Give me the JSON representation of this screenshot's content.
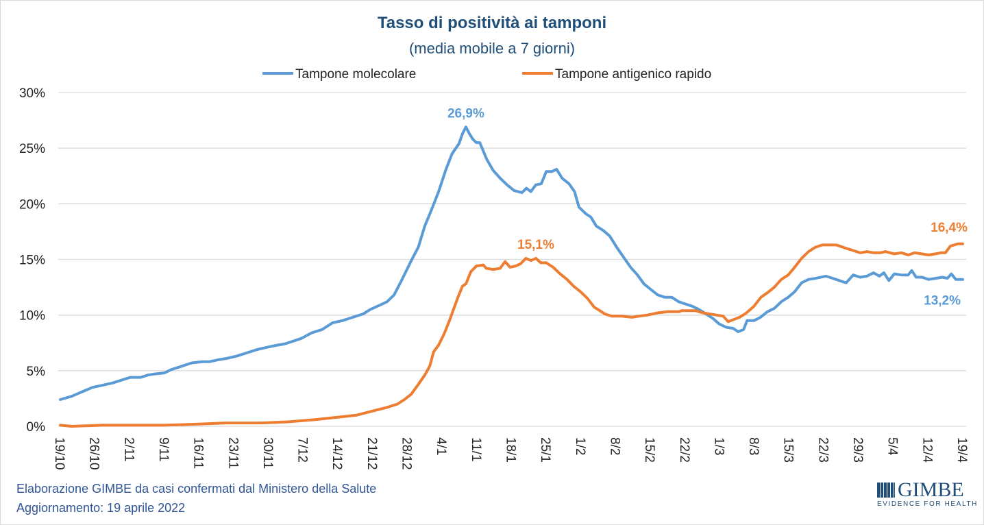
{
  "chart_data": {
    "type": "line",
    "title": "Tasso di positività ai tamponi",
    "subtitle": "(media mobile a 7 giorni)",
    "xlabel": "",
    "ylabel": "",
    "ylim": [
      0,
      30
    ],
    "y_ticks": [
      "0%",
      "5%",
      "10%",
      "15%",
      "20%",
      "25%",
      "30%"
    ],
    "y_tick_values": [
      0,
      5,
      10,
      15,
      20,
      25,
      30
    ],
    "x_unit": "days since 19/10/2021",
    "xlim": [
      0,
      182
    ],
    "x_ticks": [
      "19/10",
      "26/10",
      "2/11",
      "9/11",
      "16/11",
      "23/11",
      "30/11",
      "7/12",
      "14/12",
      "21/12",
      "28/12",
      "4/1",
      "11/1",
      "18/1",
      "25/1",
      "1/2",
      "8/2",
      "15/2",
      "22/2",
      "1/3",
      "8/3",
      "15/3",
      "22/3",
      "29/3",
      "5/4",
      "12/4",
      "19/4"
    ],
    "grid": true,
    "legend_position": "top",
    "series": [
      {
        "name": "Tampone molecolare",
        "color": "#5b9bd5",
        "annotations": [
          {
            "x": 81.8,
            "y": 26.9,
            "label": "26,9%",
            "pos": "above"
          },
          {
            "x": 182,
            "y": 13.2,
            "label": "13,2%",
            "pos": "below-left"
          }
        ],
        "points": [
          [
            0,
            2.4
          ],
          [
            2.3,
            2.7
          ],
          [
            4.4,
            3.1
          ],
          [
            6.5,
            3.5
          ],
          [
            8.6,
            3.7
          ],
          [
            10.6,
            3.9
          ],
          [
            12.7,
            4.2
          ],
          [
            14.1,
            4.4
          ],
          [
            16.2,
            4.4
          ],
          [
            17.6,
            4.6
          ],
          [
            18.9,
            4.7
          ],
          [
            21.0,
            4.8
          ],
          [
            22.4,
            5.1
          ],
          [
            24.5,
            5.4
          ],
          [
            26.5,
            5.7
          ],
          [
            28.6,
            5.8
          ],
          [
            30.0,
            5.8
          ],
          [
            32.1,
            6.0
          ],
          [
            33.5,
            6.1
          ],
          [
            35.5,
            6.3
          ],
          [
            37.6,
            6.6
          ],
          [
            39.7,
            6.9
          ],
          [
            41.7,
            7.1
          ],
          [
            43.8,
            7.3
          ],
          [
            45.2,
            7.4
          ],
          [
            46.6,
            7.6
          ],
          [
            48.6,
            7.9
          ],
          [
            50.7,
            8.4
          ],
          [
            52.8,
            8.7
          ],
          [
            54.9,
            9.3
          ],
          [
            56.9,
            9.5
          ],
          [
            59.0,
            9.8
          ],
          [
            61.1,
            10.1
          ],
          [
            62.5,
            10.5
          ],
          [
            64.5,
            10.9
          ],
          [
            65.9,
            11.2
          ],
          [
            67.3,
            11.8
          ],
          [
            68.7,
            13.0
          ],
          [
            70.8,
            14.9
          ],
          [
            72.2,
            16.1
          ],
          [
            73.5,
            18.0
          ],
          [
            74.9,
            19.5
          ],
          [
            76.3,
            21.1
          ],
          [
            77.7,
            23.0
          ],
          [
            79.0,
            24.5
          ],
          [
            80.4,
            25.4
          ],
          [
            81.1,
            26.3
          ],
          [
            81.8,
            26.9
          ],
          [
            82.5,
            26.3
          ],
          [
            83.2,
            25.8
          ],
          [
            83.9,
            25.5
          ],
          [
            84.6,
            25.5
          ],
          [
            86.0,
            24.0
          ],
          [
            87.3,
            23.0
          ],
          [
            88.7,
            22.3
          ],
          [
            90.1,
            21.7
          ],
          [
            91.5,
            21.2
          ],
          [
            93.1,
            21.0
          ],
          [
            94.0,
            21.4
          ],
          [
            94.9,
            21.1
          ],
          [
            95.9,
            21.7
          ],
          [
            97.0,
            21.8
          ],
          [
            98.0,
            22.9
          ],
          [
            99.1,
            22.9
          ],
          [
            100.1,
            23.1
          ],
          [
            101.2,
            22.3
          ],
          [
            102.6,
            21.8
          ],
          [
            103.7,
            21.1
          ],
          [
            104.6,
            19.7
          ],
          [
            106.0,
            19.1
          ],
          [
            107.0,
            18.8
          ],
          [
            108.1,
            18.0
          ],
          [
            109.5,
            17.6
          ],
          [
            110.8,
            17.1
          ],
          [
            112.2,
            16.1
          ],
          [
            113.6,
            15.2
          ],
          [
            115.0,
            14.3
          ],
          [
            116.4,
            13.6
          ],
          [
            117.7,
            12.8
          ],
          [
            119.1,
            12.3
          ],
          [
            120.5,
            11.8
          ],
          [
            121.9,
            11.6
          ],
          [
            123.3,
            11.6
          ],
          [
            124.7,
            11.2
          ],
          [
            126.0,
            11.0
          ],
          [
            127.4,
            10.8
          ],
          [
            128.8,
            10.5
          ],
          [
            130.2,
            10.1
          ],
          [
            131.6,
            9.7
          ],
          [
            132.9,
            9.2
          ],
          [
            134.3,
            8.9
          ],
          [
            135.7,
            8.8
          ],
          [
            136.7,
            8.5
          ],
          [
            137.8,
            8.7
          ],
          [
            138.5,
            9.5
          ],
          [
            139.9,
            9.5
          ],
          [
            141.2,
            9.8
          ],
          [
            142.6,
            10.3
          ],
          [
            144.0,
            10.6
          ],
          [
            145.4,
            11.2
          ],
          [
            146.8,
            11.6
          ],
          [
            148.1,
            12.1
          ],
          [
            149.5,
            12.9
          ],
          [
            150.9,
            13.2
          ],
          [
            152.3,
            13.3
          ],
          [
            154.4,
            13.5
          ],
          [
            155.8,
            13.3
          ],
          [
            157.1,
            13.1
          ],
          [
            158.5,
            12.9
          ],
          [
            159.9,
            13.6
          ],
          [
            161.3,
            13.4
          ],
          [
            162.7,
            13.5
          ],
          [
            164.0,
            13.8
          ],
          [
            165.2,
            13.5
          ],
          [
            166.1,
            13.8
          ],
          [
            167.1,
            13.1
          ],
          [
            168.2,
            13.7
          ],
          [
            169.6,
            13.6
          ],
          [
            171.0,
            13.6
          ],
          [
            171.7,
            14.0
          ],
          [
            172.6,
            13.4
          ],
          [
            173.8,
            13.4
          ],
          [
            175.1,
            13.2
          ],
          [
            176.5,
            13.3
          ],
          [
            177.9,
            13.4
          ],
          [
            178.9,
            13.3
          ],
          [
            179.7,
            13.7
          ],
          [
            180.6,
            13.2
          ],
          [
            182.0,
            13.2
          ]
        ]
      },
      {
        "name": "Tampone antigenico rapido",
        "color": "#ed7d31",
        "annotations": [
          {
            "x": 95.9,
            "y": 15.1,
            "label": "15,1%",
            "pos": "above"
          },
          {
            "x": 182,
            "y": 16.4,
            "label": "16,4%",
            "pos": "above-left"
          }
        ],
        "points": [
          [
            0,
            0.1
          ],
          [
            2.3,
            0
          ],
          [
            8.6,
            0.1
          ],
          [
            15.5,
            0.1
          ],
          [
            21.0,
            0.1
          ],
          [
            27.9,
            0.2
          ],
          [
            33.4,
            0.3
          ],
          [
            40.4,
            0.3
          ],
          [
            45.9,
            0.4
          ],
          [
            51.4,
            0.6
          ],
          [
            55.6,
            0.8
          ],
          [
            59.7,
            1.0
          ],
          [
            63.2,
            1.4
          ],
          [
            65.9,
            1.7
          ],
          [
            68.0,
            2.0
          ],
          [
            69.4,
            2.4
          ],
          [
            70.8,
            2.9
          ],
          [
            72.1,
            3.7
          ],
          [
            73.5,
            4.6
          ],
          [
            74.5,
            5.4
          ],
          [
            75.3,
            6.7
          ],
          [
            76.3,
            7.3
          ],
          [
            77.4,
            8.3
          ],
          [
            78.4,
            9.4
          ],
          [
            79.3,
            10.5
          ],
          [
            80.2,
            11.6
          ],
          [
            81.1,
            12.6
          ],
          [
            81.8,
            12.8
          ],
          [
            82.8,
            13.9
          ],
          [
            83.9,
            14.4
          ],
          [
            85.3,
            14.5
          ],
          [
            85.9,
            14.2
          ],
          [
            87.3,
            14.1
          ],
          [
            88.7,
            14.2
          ],
          [
            89.7,
            14.8
          ],
          [
            90.7,
            14.3
          ],
          [
            91.8,
            14.4
          ],
          [
            92.8,
            14.6
          ],
          [
            93.9,
            15.1
          ],
          [
            94.9,
            14.9
          ],
          [
            95.9,
            15.1
          ],
          [
            96.9,
            14.7
          ],
          [
            98.0,
            14.7
          ],
          [
            99.4,
            14.3
          ],
          [
            100.8,
            13.7
          ],
          [
            102.2,
            13.2
          ],
          [
            103.5,
            12.6
          ],
          [
            104.9,
            12.1
          ],
          [
            106.3,
            11.5
          ],
          [
            107.7,
            10.7
          ],
          [
            108.8,
            10.4
          ],
          [
            109.8,
            10.1
          ],
          [
            111.2,
            9.9
          ],
          [
            113.2,
            9.9
          ],
          [
            115.3,
            9.8
          ],
          [
            116.7,
            9.9
          ],
          [
            118.4,
            10.0
          ],
          [
            120.5,
            10.2
          ],
          [
            122.6,
            10.3
          ],
          [
            124.7,
            10.3
          ],
          [
            125.4,
            10.4
          ],
          [
            128.1,
            10.4
          ],
          [
            129.5,
            10.2
          ],
          [
            130.9,
            10.1
          ],
          [
            132.3,
            10.0
          ],
          [
            133.7,
            9.9
          ],
          [
            134.7,
            9.4
          ],
          [
            135.8,
            9.6
          ],
          [
            137.0,
            9.8
          ],
          [
            138.4,
            10.2
          ],
          [
            139.9,
            10.8
          ],
          [
            141.3,
            11.6
          ],
          [
            142.6,
            12.0
          ],
          [
            144.0,
            12.5
          ],
          [
            145.4,
            13.2
          ],
          [
            146.8,
            13.6
          ],
          [
            148.1,
            14.3
          ],
          [
            149.5,
            15.1
          ],
          [
            150.9,
            15.7
          ],
          [
            152.3,
            16.1
          ],
          [
            153.7,
            16.3
          ],
          [
            156.5,
            16.3
          ],
          [
            158.5,
            16.0
          ],
          [
            159.9,
            15.8
          ],
          [
            161.3,
            15.6
          ],
          [
            162.7,
            15.7
          ],
          [
            164.0,
            15.6
          ],
          [
            165.4,
            15.6
          ],
          [
            166.4,
            15.7
          ],
          [
            168.2,
            15.5
          ],
          [
            169.6,
            15.6
          ],
          [
            171.0,
            15.4
          ],
          [
            172.3,
            15.6
          ],
          [
            173.7,
            15.5
          ],
          [
            175.1,
            15.4
          ],
          [
            176.5,
            15.5
          ],
          [
            177.6,
            15.6
          ],
          [
            178.5,
            15.6
          ],
          [
            179.5,
            16.2
          ],
          [
            181.0,
            16.4
          ],
          [
            182.0,
            16.4
          ]
        ]
      }
    ]
  },
  "footer": {
    "line1": "Elaborazione GIMBE da casi confermati dal Ministero della Salute",
    "line2": "Aggiornamento: 19 aprile 2022"
  },
  "logo": {
    "name": "GIMBE",
    "tagline": "EVIDENCE FOR HEALTH"
  }
}
